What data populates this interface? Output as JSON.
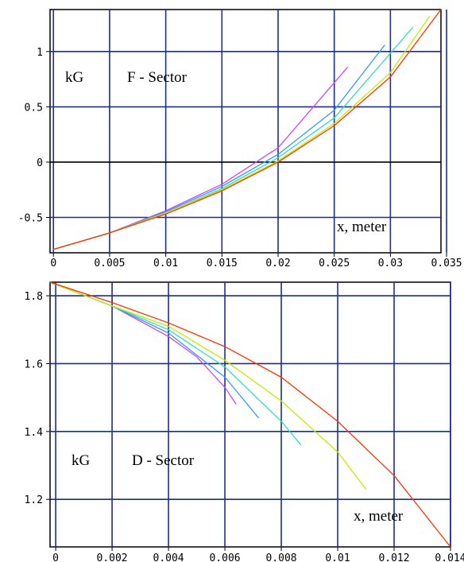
{
  "chart_data": [
    {
      "type": "line",
      "labels": [
        "kG",
        "F - Sector",
        "x, meter"
      ],
      "xlim": [
        -0.0003,
        0.0345
      ],
      "ylim": [
        -0.82,
        1.38
      ],
      "x_ticks": [
        0,
        0.005,
        0.01,
        0.015,
        0.02,
        0.025,
        0.03,
        0.035
      ],
      "x_tick_labels": [
        "0",
        "0.005",
        "0.01",
        "0.015",
        "0.02",
        "0.025",
        "0.03",
        "0.035"
      ],
      "y_ticks": [
        -0.5,
        0,
        0.5,
        1
      ],
      "y_tick_labels": [
        "-0.5",
        "0",
        "0.5",
        "1"
      ],
      "grid": true,
      "series": [
        {
          "color": "#cc44ff",
          "x": [
            0,
            0.005,
            0.01,
            0.015,
            0.02,
            0.0262
          ],
          "y": [
            -0.79,
            -0.64,
            -0.44,
            -0.2,
            0.13,
            0.86
          ]
        },
        {
          "color": "#3399ff",
          "x": [
            0,
            0.005,
            0.01,
            0.015,
            0.02,
            0.025,
            0.0295
          ],
          "y": [
            -0.79,
            -0.64,
            -0.45,
            -0.22,
            0.07,
            0.47,
            1.06
          ]
        },
        {
          "color": "#33ddbb",
          "x": [
            0,
            0.005,
            0.01,
            0.015,
            0.02,
            0.025,
            0.032
          ],
          "y": [
            -0.79,
            -0.64,
            -0.46,
            -0.24,
            0.04,
            0.4,
            1.22
          ]
        },
        {
          "color": "#c8e800",
          "x": [
            0,
            0.005,
            0.01,
            0.015,
            0.02,
            0.025,
            0.03,
            0.0335
          ],
          "y": [
            -0.79,
            -0.64,
            -0.46,
            -0.25,
            0.01,
            0.35,
            0.81,
            1.32
          ]
        },
        {
          "color": "#ff3300",
          "x": [
            0,
            0.005,
            0.01,
            0.015,
            0.02,
            0.025,
            0.03,
            0.0345
          ],
          "y": [
            -0.79,
            -0.64,
            -0.47,
            -0.26,
            0.0,
            0.33,
            0.77,
            1.38
          ]
        }
      ]
    },
    {
      "type": "line",
      "labels": [
        "kG",
        "D - Sector",
        "x, meter"
      ],
      "xlim": [
        -0.0002,
        0.014
      ],
      "ylim": [
        1.06,
        1.84
      ],
      "x_ticks": [
        0,
        0.002,
        0.004,
        0.006,
        0.008,
        0.01,
        0.012,
        0.014
      ],
      "x_tick_labels": [
        "0",
        "0.002",
        "0.004",
        "0.006",
        "0.008",
        "0.01",
        "0.012",
        "0.014"
      ],
      "y_ticks": [
        1.2,
        1.4,
        1.6,
        1.8
      ],
      "y_tick_labels": [
        "1.2",
        "1.4",
        "1.6",
        "1.8"
      ],
      "grid": true,
      "series": [
        {
          "color": "#cc44ff",
          "x": [
            -0.0002,
            0.002,
            0.004,
            0.005,
            0.006,
            0.0064
          ],
          "y": [
            1.84,
            1.77,
            1.68,
            1.62,
            1.53,
            1.48
          ]
        },
        {
          "color": "#3399ff",
          "x": [
            -0.0002,
            0.002,
            0.004,
            0.006,
            0.0072
          ],
          "y": [
            1.84,
            1.77,
            1.69,
            1.56,
            1.44
          ]
        },
        {
          "color": "#33ddbb",
          "x": [
            -0.0002,
            0.002,
            0.004,
            0.006,
            0.008,
            0.0087
          ],
          "y": [
            1.84,
            1.77,
            1.7,
            1.59,
            1.43,
            1.36
          ]
        },
        {
          "color": "#c8e800",
          "x": [
            -0.0002,
            0.002,
            0.004,
            0.006,
            0.008,
            0.01,
            0.011
          ],
          "y": [
            1.84,
            1.77,
            1.71,
            1.61,
            1.49,
            1.34,
            1.23
          ]
        },
        {
          "color": "#ff3300",
          "x": [
            -0.0002,
            0.002,
            0.004,
            0.006,
            0.008,
            0.01,
            0.012,
            0.014
          ],
          "y": [
            1.84,
            1.78,
            1.72,
            1.65,
            1.56,
            1.43,
            1.27,
            1.06
          ]
        }
      ]
    }
  ]
}
